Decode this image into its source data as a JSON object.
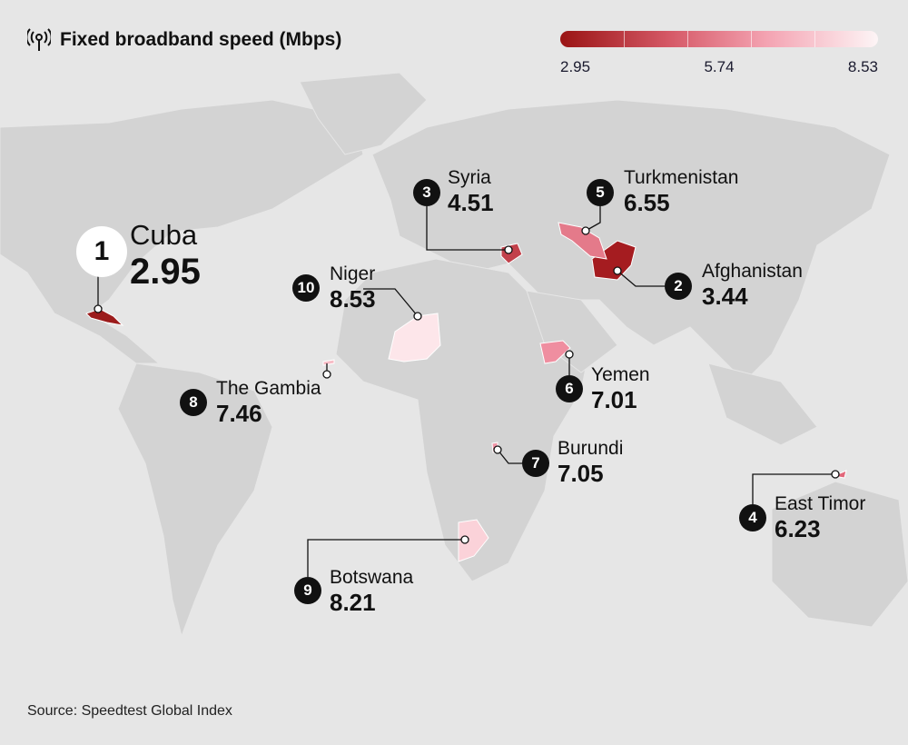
{
  "header": {
    "title": "Fixed broadband speed (Mbps)",
    "icon": "antenna-signal-icon"
  },
  "legend": {
    "min": "2.95",
    "mid": "5.74",
    "max": "8.53",
    "color_low": "#9a1414",
    "color_high": "#fdf5f6"
  },
  "countries": [
    {
      "rank": "1",
      "name": "Cuba",
      "value": "2.95",
      "color": "#9b1b1b"
    },
    {
      "rank": "2",
      "name": "Afghanistan",
      "value": "3.44",
      "color": "#a51c20"
    },
    {
      "rank": "3",
      "name": "Syria",
      "value": "4.51",
      "color": "#c2414b"
    },
    {
      "rank": "4",
      "name": "East Timor",
      "value": "6.23",
      "color": "#e2677a"
    },
    {
      "rank": "5",
      "name": "Turkmenistan",
      "value": "6.55",
      "color": "#e47a8a"
    },
    {
      "rank": "6",
      "name": "Yemen",
      "value": "7.01",
      "color": "#ef8ea0"
    },
    {
      "rank": "7",
      "name": "Burundi",
      "value": "7.05",
      "color": "#f096a7"
    },
    {
      "rank": "8",
      "name": "The Gambia",
      "value": "7.46",
      "color": "#f7bcc6"
    },
    {
      "rank": "9",
      "name": "Botswana",
      "value": "8.21",
      "color": "#fbd2d9"
    },
    {
      "rank": "10",
      "name": "Niger",
      "value": "8.53",
      "color": "#fde6ea"
    }
  ],
  "source": "Source: Speedtest Global Index"
}
